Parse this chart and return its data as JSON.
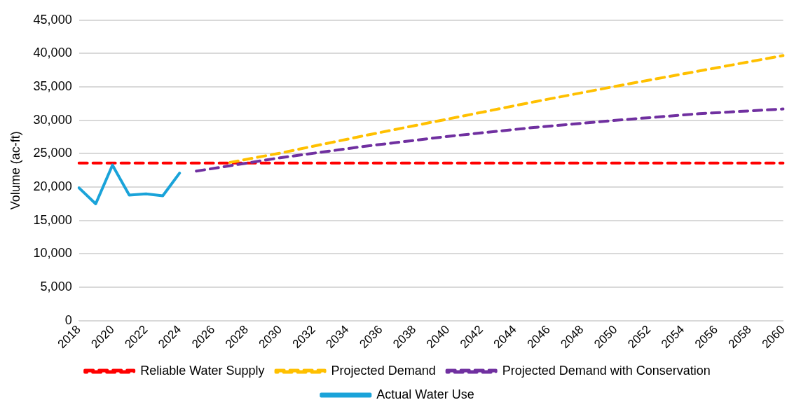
{
  "chart_data": {
    "type": "line",
    "ylabel": "Volume (ac-ft)",
    "categories": [
      "2018",
      null,
      "2020",
      null,
      "2022",
      null,
      "2024",
      null,
      "2026",
      null,
      "2028",
      null,
      "2030",
      null,
      "2032",
      null,
      "2034",
      null,
      "2036",
      null,
      "2038",
      null,
      "2040",
      null,
      "2042",
      null,
      "2044",
      null,
      "2046",
      null,
      "2048",
      null,
      "2050",
      null,
      "2052",
      null,
      "2054",
      null,
      "2056",
      null,
      "2058",
      null,
      "2060"
    ],
    "series": [
      {
        "name": "Reliable Water Supply",
        "color": "#ff0000",
        "line_style": "dashed",
        "values": [
          23600,
          null,
          null,
          null,
          null,
          null,
          null,
          null,
          null,
          null,
          null,
          null,
          null,
          null,
          null,
          null,
          null,
          null,
          null,
          null,
          null,
          null,
          null,
          null,
          null,
          null,
          null,
          null,
          null,
          null,
          null,
          null,
          null,
          null,
          null,
          null,
          null,
          null,
          null,
          null,
          null,
          null,
          23600
        ]
      },
      {
        "name": "Projected Demand",
        "color": "#ffc000",
        "line_style": "dashed",
        "values": [
          null,
          null,
          null,
          null,
          null,
          null,
          null,
          null,
          null,
          23700,
          null,
          null,
          25100,
          null,
          null,
          null,
          null,
          27700,
          null,
          null,
          null,
          null,
          30200,
          null,
          null,
          null,
          null,
          32700,
          null,
          null,
          null,
          null,
          35100,
          null,
          null,
          null,
          null,
          37400,
          null,
          null,
          null,
          null,
          39700
        ]
      },
      {
        "name": "Projected Demand with Conservation",
        "color": "#7030a0",
        "line_style": "dashed",
        "values": [
          null,
          null,
          null,
          null,
          null,
          null,
          null,
          22400,
          null,
          null,
          null,
          null,
          24400,
          null,
          null,
          null,
          null,
          26100,
          null,
          null,
          null,
          null,
          27600,
          null,
          null,
          null,
          null,
          28900,
          null,
          null,
          null,
          null,
          30000,
          null,
          null,
          null,
          null,
          31000,
          null,
          null,
          null,
          null,
          31700
        ]
      },
      {
        "name": "Actual Water Use",
        "color": "#1aa3d9",
        "line_style": "solid",
        "values": [
          19900,
          17500,
          23300,
          18800,
          19000,
          18700,
          22100,
          null,
          null,
          null,
          null,
          null,
          null,
          null,
          null,
          null,
          null,
          null,
          null,
          null,
          null,
          null,
          null,
          null,
          null,
          null,
          null,
          null,
          null,
          null,
          null,
          null,
          null,
          null,
          null,
          null,
          null,
          null,
          null,
          null,
          null,
          null,
          null
        ]
      }
    ],
    "ylim": [
      0,
      45000
    ],
    "yticks": [
      {
        "value": 0,
        "label": "0"
      },
      {
        "value": 5000,
        "label": "5,000"
      },
      {
        "value": 10000,
        "label": "10,000"
      },
      {
        "value": 15000,
        "label": "15,000"
      },
      {
        "value": 20000,
        "label": "20,000"
      },
      {
        "value": 25000,
        "label": "25,000"
      },
      {
        "value": 30000,
        "label": "30,000"
      },
      {
        "value": 35000,
        "label": "35,000"
      },
      {
        "value": 40000,
        "label": "40,000"
      },
      {
        "value": 45000,
        "label": "45,000"
      }
    ],
    "grid": "y",
    "legend": "bottom",
    "marker": "none"
  }
}
